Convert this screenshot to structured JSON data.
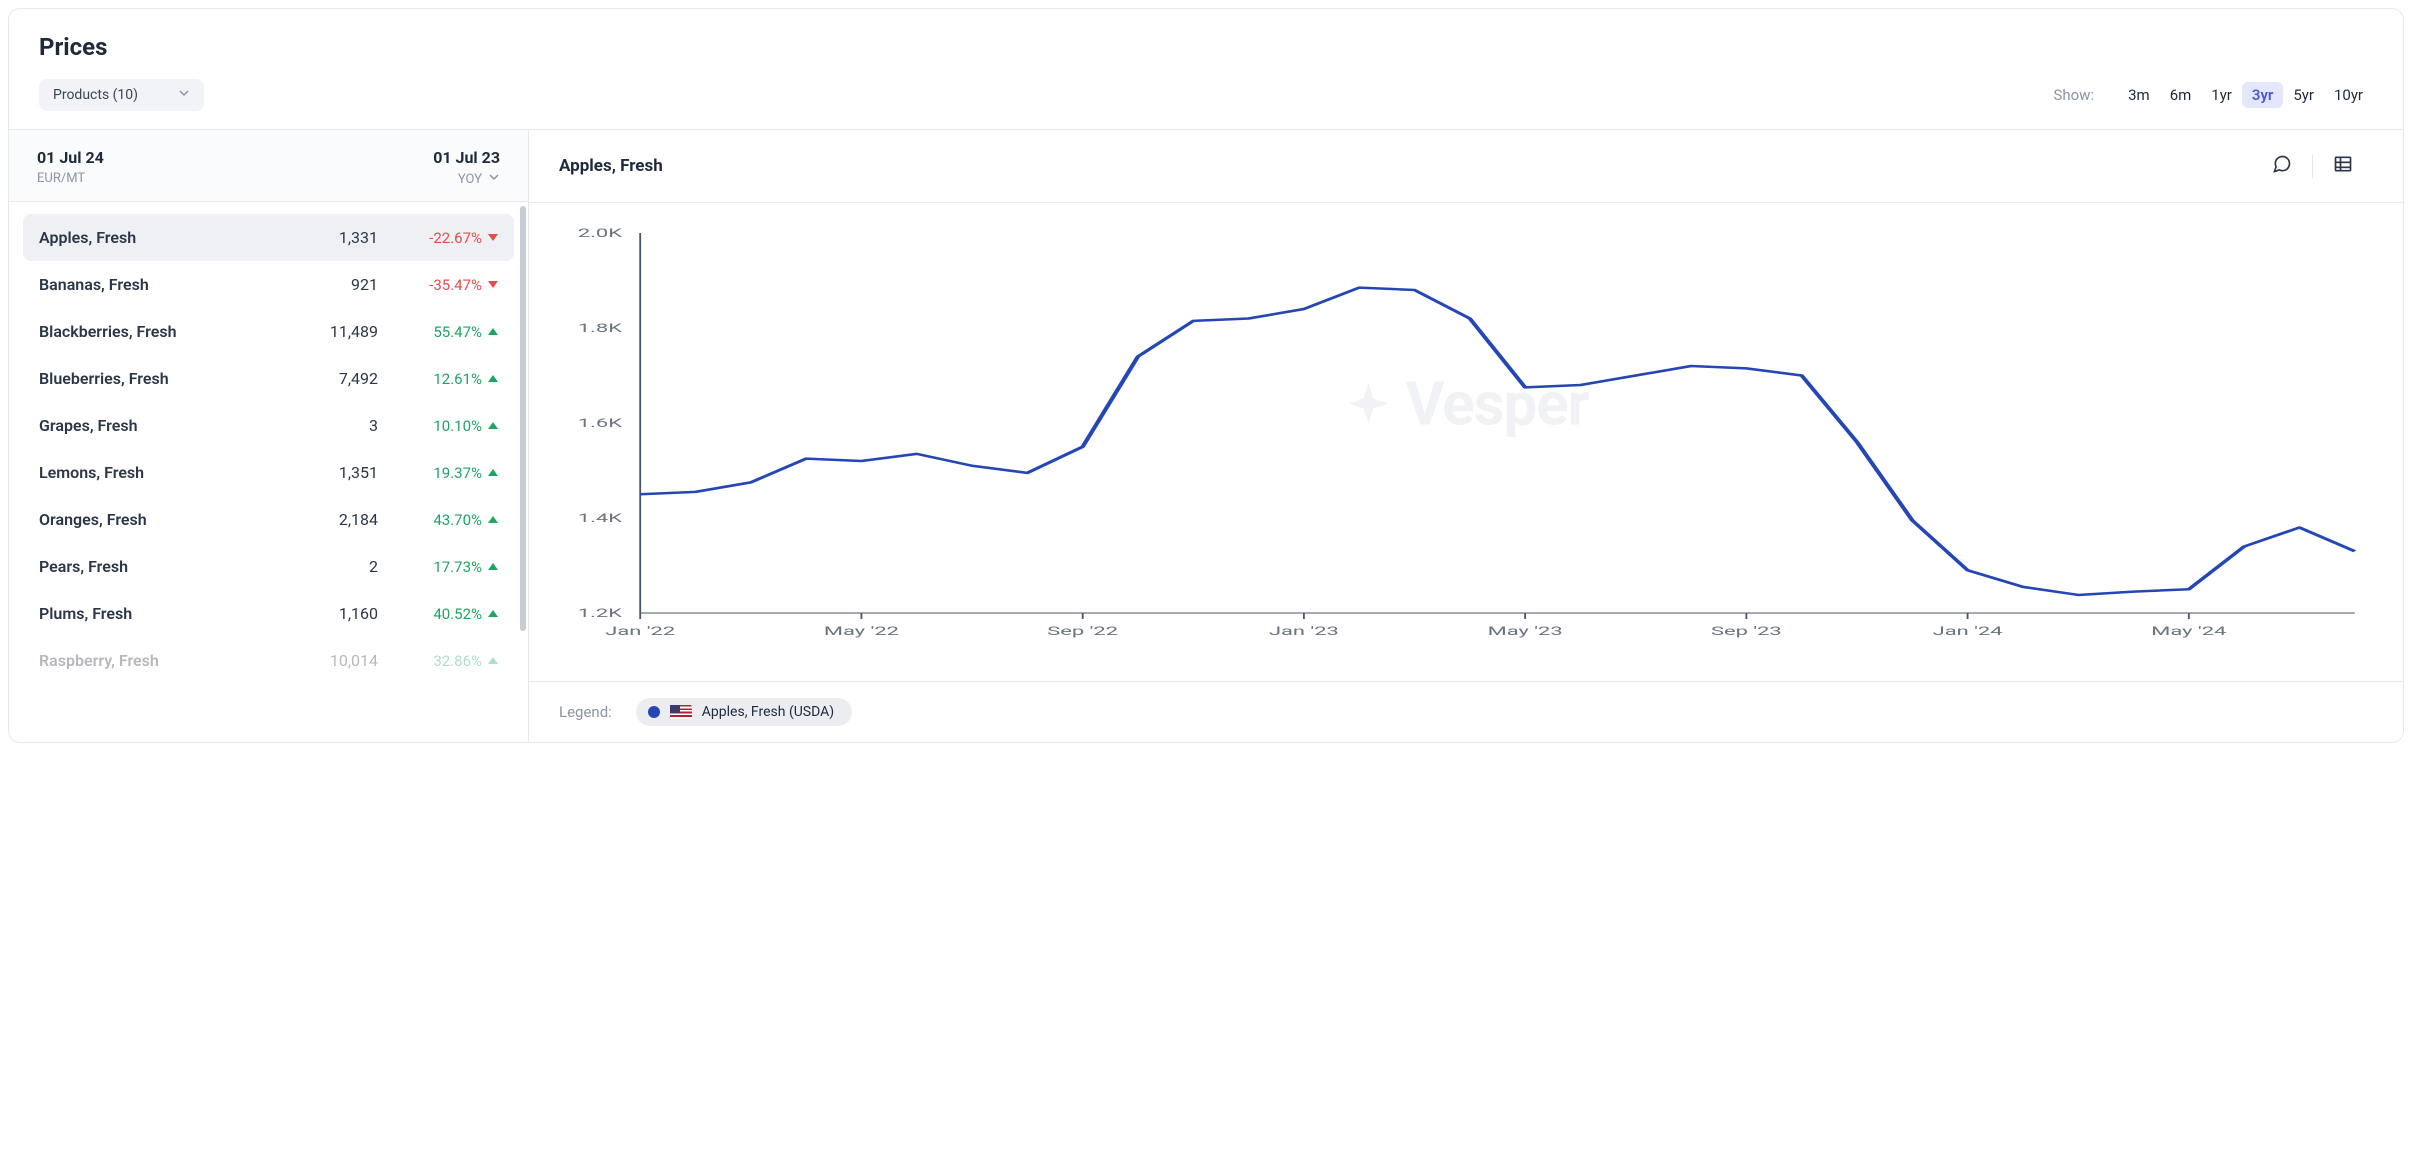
{
  "title": "Prices",
  "productsDropdown": "Products (10)",
  "rangeLabel": "Show:",
  "ranges": [
    "3m",
    "6m",
    "1yr",
    "3yr",
    "5yr",
    "10yr"
  ],
  "activeRange": "3yr",
  "leftHeader": {
    "dateCurrent": "01 Jul 24",
    "unit": "EUR/MT",
    "datePrev": "01 Jul 23",
    "compareMode": "YOY"
  },
  "rows": [
    {
      "name": "Apples, Fresh",
      "value": "1,331",
      "pct": "-22.67%",
      "dir": "down",
      "selected": true
    },
    {
      "name": "Bananas, Fresh",
      "value": "921",
      "pct": "-35.47%",
      "dir": "down"
    },
    {
      "name": "Blackberries, Fresh",
      "value": "11,489",
      "pct": "55.47%",
      "dir": "up"
    },
    {
      "name": "Blueberries, Fresh",
      "value": "7,492",
      "pct": "12.61%",
      "dir": "up"
    },
    {
      "name": "Grapes, Fresh",
      "value": "3",
      "pct": "10.10%",
      "dir": "up"
    },
    {
      "name": "Lemons, Fresh",
      "value": "1,351",
      "pct": "19.37%",
      "dir": "up"
    },
    {
      "name": "Oranges, Fresh",
      "value": "2,184",
      "pct": "43.70%",
      "dir": "up"
    },
    {
      "name": "Pears, Fresh",
      "value": "2",
      "pct": "17.73%",
      "dir": "up"
    },
    {
      "name": "Plums, Fresh",
      "value": "1,160",
      "pct": "40.52%",
      "dir": "up"
    },
    {
      "name": "Raspberry, Fresh",
      "value": "10,014",
      "pct": "32.86%",
      "dir": "up",
      "faded": true
    }
  ],
  "chart": {
    "title": "Apples, Fresh",
    "watermark": "Vesper",
    "type": "line",
    "line_color": "#2546b5",
    "line_width": 2.5,
    "background_color": "#ffffff",
    "axis_color": "#6b7280",
    "axis_line_color": "#4a5568",
    "ylim": [
      1200,
      2000
    ],
    "yticks": [
      1200,
      1400,
      1600,
      1800,
      2000
    ],
    "ytick_labels": [
      "1.2K",
      "1.4K",
      "1.6K",
      "1.8K",
      "2.0K"
    ],
    "xtick_labels": [
      "Jan '22",
      "May '22",
      "Sep '22",
      "Jan '23",
      "May '23",
      "Sep '23",
      "Jan '24",
      "May '24"
    ],
    "series": [
      {
        "name": "Apples, Fresh (USDA)",
        "points": [
          [
            0,
            1450
          ],
          [
            1,
            1455
          ],
          [
            2,
            1475
          ],
          [
            3,
            1525
          ],
          [
            4,
            1520
          ],
          [
            5,
            1535
          ],
          [
            6,
            1510
          ],
          [
            7,
            1495
          ],
          [
            8,
            1550
          ],
          [
            9,
            1740
          ],
          [
            10,
            1815
          ],
          [
            11,
            1820
          ],
          [
            12,
            1840
          ],
          [
            13,
            1885
          ],
          [
            14,
            1880
          ],
          [
            15,
            1820
          ],
          [
            16,
            1675
          ],
          [
            17,
            1680
          ],
          [
            18,
            1700
          ],
          [
            19,
            1720
          ],
          [
            20,
            1715
          ],
          [
            21,
            1700
          ],
          [
            22,
            1560
          ],
          [
            23,
            1395
          ],
          [
            24,
            1290
          ],
          [
            25,
            1255
          ],
          [
            26,
            1238
          ],
          [
            27,
            1245
          ],
          [
            28,
            1250
          ],
          [
            29,
            1340
          ],
          [
            30,
            1380
          ],
          [
            31,
            1330
          ]
        ]
      }
    ]
  },
  "legend": {
    "label": "Legend:",
    "item": "Apples, Fresh (USDA)"
  }
}
